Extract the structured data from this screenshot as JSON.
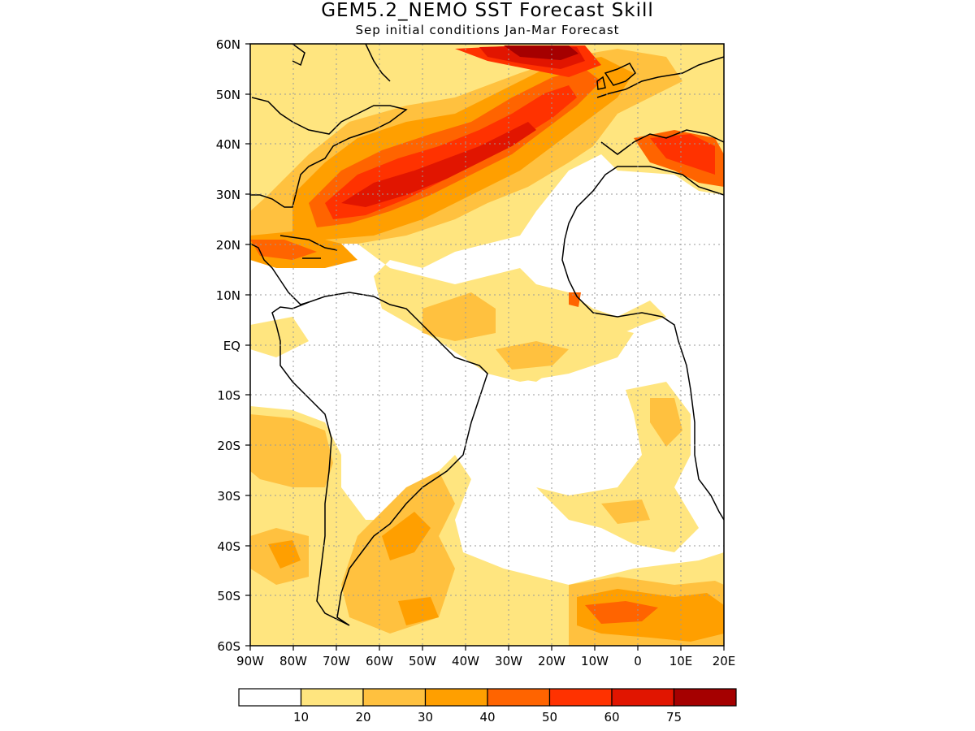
{
  "header": {
    "title": "GEM5.2_NEMO SST Forecast Skill",
    "subtitle": "Sep initial conditions  Jan-Mar Forecast"
  },
  "map": {
    "lon_range": [
      -90,
      20
    ],
    "lat_range": [
      -60,
      60
    ],
    "lat_ticks": [
      "60N",
      "50N",
      "40N",
      "30N",
      "20N",
      "10N",
      "EQ",
      "10S",
      "20S",
      "30S",
      "40S",
      "50S",
      "60S"
    ],
    "lon_ticks": [
      "90W",
      "80W",
      "70W",
      "60W",
      "50W",
      "40W",
      "30W",
      "20W",
      "10W",
      "0",
      "10E",
      "20E"
    ]
  },
  "colorbar": {
    "labels": [
      "10",
      "20",
      "30",
      "40",
      "50",
      "60",
      "75"
    ],
    "colors": [
      "#ffffff",
      "#ffe57f",
      "#ffc13f",
      "#ff9f00",
      "#ff6400",
      "#ff3200",
      "#e11500",
      "#a50000"
    ]
  }
}
